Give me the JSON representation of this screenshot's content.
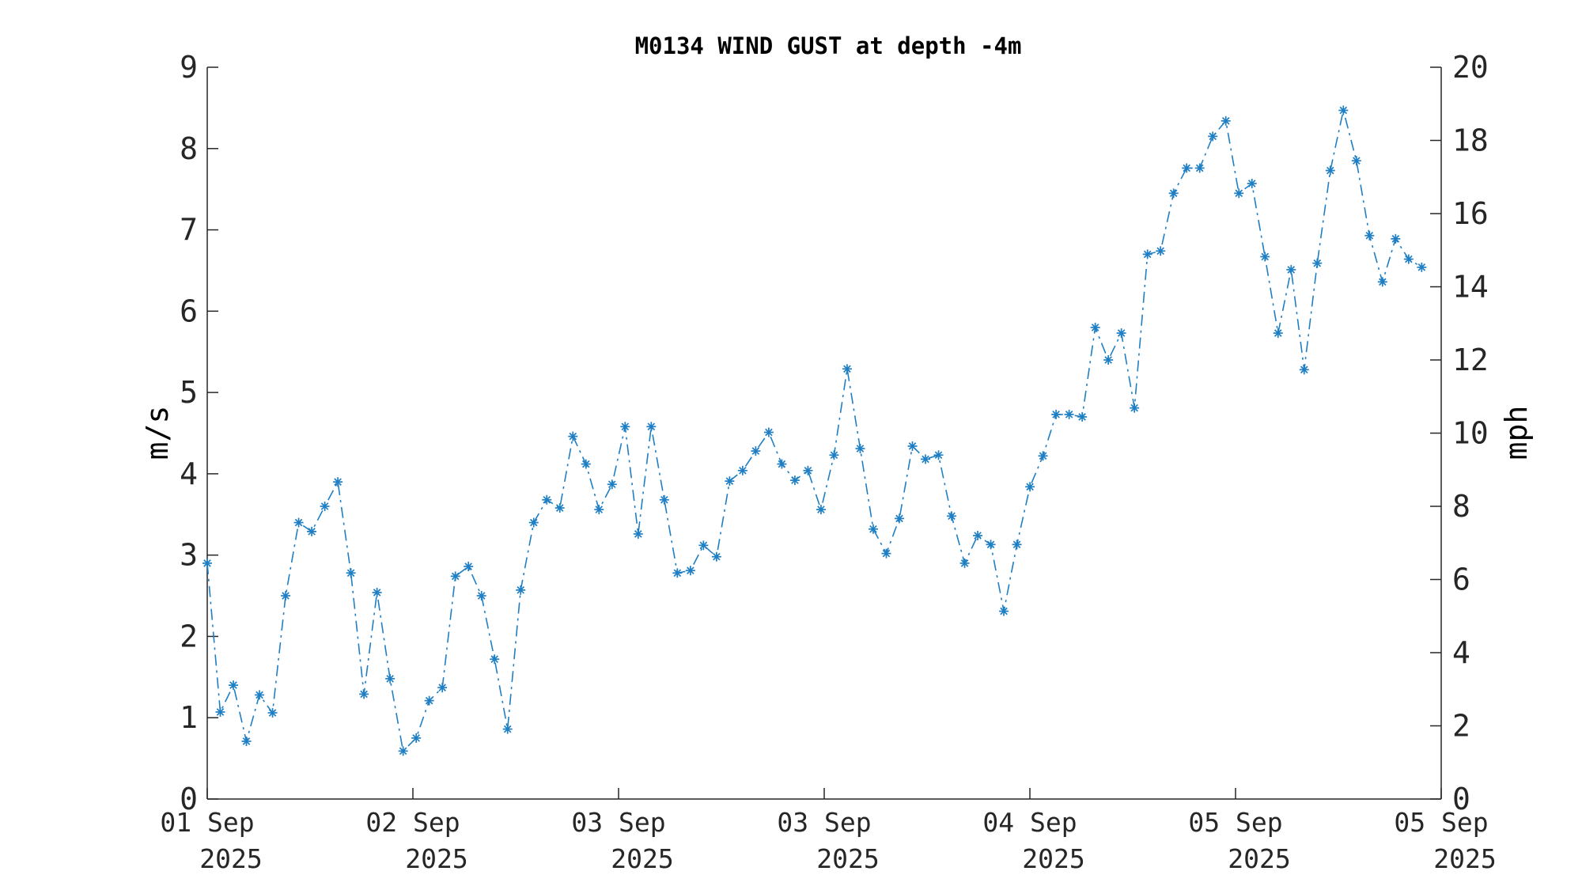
{
  "chart_data": {
    "type": "line",
    "title": "M0134 WIND GUST at depth -4m",
    "ylabel": "m/s",
    "y2label": "mph",
    "ylim": [
      0,
      9
    ],
    "y2lim": [
      0,
      20
    ],
    "yticks": [
      0,
      1,
      2,
      3,
      4,
      5,
      6,
      7,
      8,
      9
    ],
    "y2ticks": [
      0,
      2,
      4,
      6,
      8,
      10,
      12,
      14,
      16,
      18,
      20
    ],
    "xlim": [
      0,
      5.25
    ],
    "xticks": [
      {
        "x": 0,
        "line1": "01 Sep",
        "line2": "2025"
      },
      {
        "x": 0.875,
        "line1": "02 Sep",
        "line2": "2025"
      },
      {
        "x": 1.75,
        "line1": "03 Sep",
        "line2": "2025"
      },
      {
        "x": 2.625,
        "line1": "03 Sep",
        "line2": "2025"
      },
      {
        "x": 3.5,
        "line1": "04 Sep",
        "line2": "2025"
      },
      {
        "x": 4.375,
        "line1": "05 Sep",
        "line2": "2025"
      },
      {
        "x": 5.25,
        "line1": "05 Sep",
        "line2": "2025"
      }
    ],
    "grid": false,
    "series": [
      {
        "color": "#1f7fc4",
        "line_style": "dash-dot",
        "marker": "asterisk",
        "x_interval_days": 0.05556,
        "values": [
          2.9,
          1.07,
          1.4,
          0.71,
          1.28,
          1.06,
          2.5,
          3.4,
          3.29,
          3.6,
          3.9,
          2.78,
          1.29,
          2.54,
          1.48,
          0.59,
          0.75,
          1.21,
          1.37,
          2.74,
          2.86,
          2.5,
          1.72,
          0.86,
          2.57,
          3.4,
          3.68,
          3.58,
          4.46,
          4.12,
          3.56,
          3.87,
          4.58,
          3.26,
          4.58,
          3.68,
          2.78,
          2.81,
          3.12,
          2.98,
          3.91,
          4.04,
          4.28,
          4.51,
          4.12,
          3.92,
          4.04,
          3.56,
          4.23,
          5.29,
          4.31,
          3.32,
          3.02,
          3.45,
          4.34,
          4.18,
          4.23,
          3.48,
          2.9,
          3.24,
          3.13,
          2.31,
          3.13,
          3.84,
          4.22,
          4.73,
          4.73,
          4.7,
          5.8,
          5.4,
          5.73,
          4.81,
          6.7,
          6.74,
          7.45,
          7.76,
          7.76,
          8.15,
          8.34,
          7.45,
          7.57,
          6.67,
          5.73,
          6.51,
          5.28,
          6.59,
          7.73,
          8.47,
          7.85,
          6.93,
          6.36,
          6.89,
          6.64,
          6.54
        ]
      }
    ]
  }
}
